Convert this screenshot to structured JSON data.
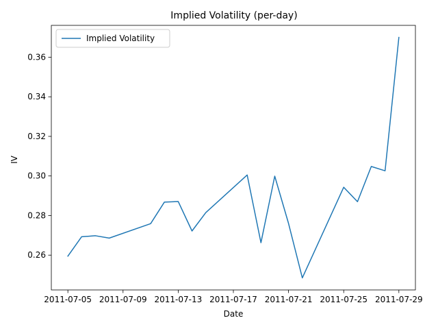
{
  "chart_data": {
    "type": "line",
    "title": "Implied Volatility (per-day)",
    "xlabel": "Date",
    "ylabel": "IV",
    "x": [
      "2011-07-05",
      "2011-07-06",
      "2011-07-07",
      "2011-07-08",
      "2011-07-11",
      "2011-07-12",
      "2011-07-13",
      "2011-07-14",
      "2011-07-15",
      "2011-07-18",
      "2011-07-19",
      "2011-07-20",
      "2011-07-21",
      "2011-07-22",
      "2011-07-25",
      "2011-07-26",
      "2011-07-27",
      "2011-07-28",
      "2011-07-29"
    ],
    "series": [
      {
        "name": "Implied Volatility",
        "color": "#1f77b4",
        "values": [
          0.2595,
          0.2693,
          0.2698,
          0.2686,
          0.2759,
          0.2868,
          0.2871,
          0.2722,
          0.2815,
          0.3005,
          0.2663,
          0.2999,
          0.276,
          0.2485,
          0.2943,
          0.287,
          0.3048,
          0.3026,
          0.37
        ]
      }
    ],
    "xlim": [
      "2011-07-03 19:12",
      "2011-07-30 04:48"
    ],
    "ylim": [
      0.24242,
      0.37608
    ],
    "xticks": [
      "2011-07-05",
      "2011-07-09",
      "2011-07-13",
      "2011-07-17",
      "2011-07-21",
      "2011-07-25",
      "2011-07-29"
    ],
    "yticks": [
      0.26,
      0.28,
      0.3,
      0.32,
      0.34,
      0.36
    ],
    "ytick_labels": [
      "0.26",
      "0.28",
      "0.30",
      "0.32",
      "0.34",
      "0.36"
    ],
    "legend_position": "upper-left",
    "grid": false
  }
}
